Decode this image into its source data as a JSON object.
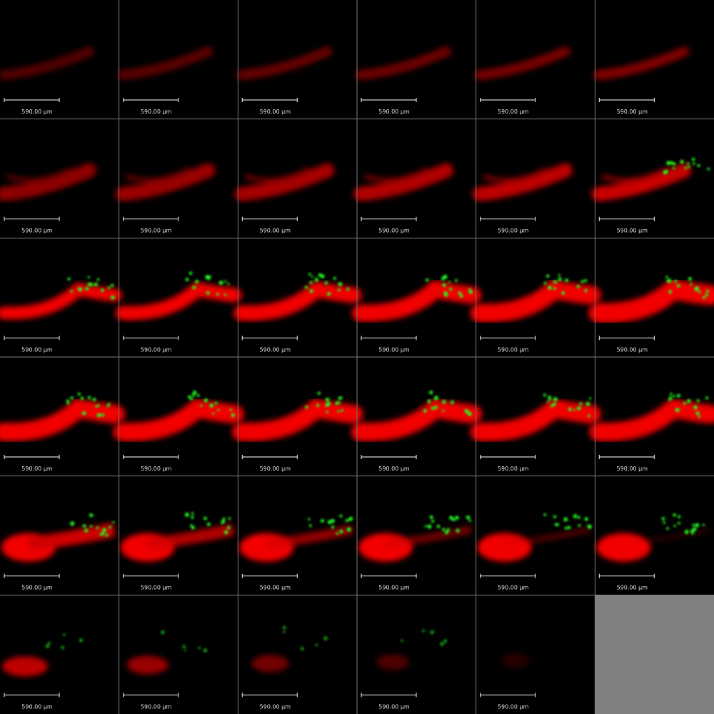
{
  "panels": [
    {
      "scale_label": "590.00 µm"
    },
    {
      "scale_label": "590.00 µm"
    },
    {
      "scale_label": "590.00 µm"
    },
    {
      "scale_label": "590.00 µm"
    },
    {
      "scale_label": "590.00 µm"
    },
    {
      "scale_label": "590.00 µm"
    },
    {
      "scale_label": "590.00 µm"
    },
    {
      "scale_label": "590.00 µm"
    },
    {
      "scale_label": "590.00 µm"
    },
    {
      "scale_label": "590.00 µm"
    },
    {
      "scale_label": "590.00 µm"
    },
    {
      "scale_label": "590.00 µm"
    },
    {
      "scale_label": "590.00 µm"
    },
    {
      "scale_label": "590.00 µm"
    },
    {
      "scale_label": "590.00 µm"
    },
    {
      "scale_label": "590.00 µm"
    },
    {
      "scale_label": "590.00 µm"
    },
    {
      "scale_label": "590.00 µm"
    },
    {
      "scale_label": "590.00 µm"
    },
    {
      "scale_label": "590.00 µm"
    },
    {
      "scale_label": "590.00 µm"
    },
    {
      "scale_label": "590.00 µm"
    },
    {
      "scale_label": "590.00 µm"
    },
    {
      "scale_label": "590.00 µm"
    },
    {
      "scale_label": "590.00 µm"
    },
    {
      "scale_label": "590.00 µm"
    },
    {
      "scale_label": "590.00 µm"
    },
    {
      "scale_label": "590.00 µm"
    },
    {
      "scale_label": "590.00 µm"
    },
    {
      "scale_label": "590.00 µm"
    },
    {
      "scale_label": "590.00 µm"
    },
    {
      "scale_label": "590.00 µm"
    },
    {
      "scale_label": "590.00 µm"
    },
    {
      "scale_label": "590.00 µm"
    },
    {
      "scale_label": "590.00 µm"
    }
  ]
}
